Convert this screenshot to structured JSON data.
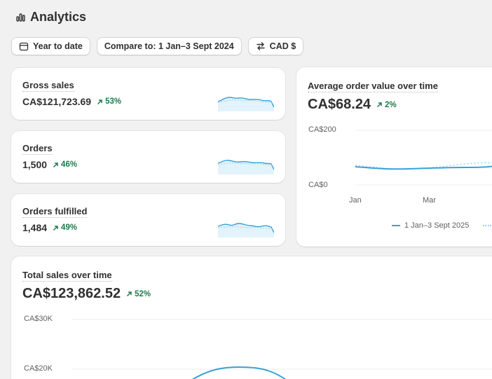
{
  "header": {
    "title": "Analytics",
    "icon": "analytics-bars-icon"
  },
  "filters": {
    "date_range": "Year to date",
    "compare": "Compare to: 1 Jan–3 Sept 2024",
    "currency": "CAD $"
  },
  "kpis": [
    {
      "title": "Gross sales",
      "value": "CA$121,723.69",
      "delta": "53%"
    },
    {
      "title": "Orders",
      "value": "1,500",
      "delta": "46%"
    },
    {
      "title": "Orders fulfilled",
      "value": "1,484",
      "delta": "49%"
    }
  ],
  "aov": {
    "title": "Average order value over time",
    "value": "CA$68.24",
    "delta": "2%",
    "y_ticks": [
      "CA$200",
      "CA$0"
    ],
    "x_ticks": [
      "Jan",
      "Mar"
    ],
    "legend": [
      "1 Jan–3 Sept 2025"
    ]
  },
  "total_sales": {
    "title": "Total sales over time",
    "value": "CA$123,862.52",
    "delta": "52%",
    "y_ticks": [
      "CA$30K",
      "CA$20K"
    ]
  },
  "colors": {
    "accent": "#3aa1d8",
    "positive": "#1f7a4c"
  }
}
